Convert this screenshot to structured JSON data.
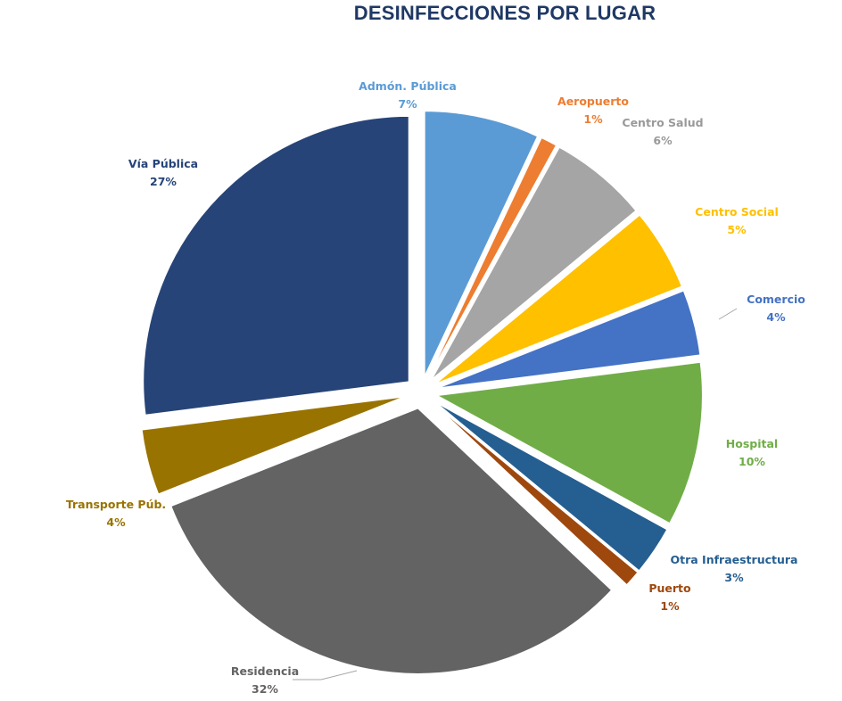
{
  "chart_data": {
    "type": "pie",
    "title": "DESINFECCIONES POR LUGAR",
    "exploded": true,
    "legend": "none",
    "slices": [
      {
        "name": "Admón. Pública",
        "percent_label": "7%",
        "value": 7,
        "color": "#5b9bd5"
      },
      {
        "name": "Aeropuerto",
        "percent_label": "1%",
        "value": 1,
        "color": "#ed7d31"
      },
      {
        "name": "Centro Salud",
        "percent_label": "6%",
        "value": 6,
        "color": "#a5a5a5"
      },
      {
        "name": "Centro Social",
        "percent_label": "5%",
        "value": 5,
        "color": "#ffc000"
      },
      {
        "name": "Comercio",
        "percent_label": "4%",
        "value": 4,
        "color": "#4472c4"
      },
      {
        "name": "Hospital",
        "percent_label": "10%",
        "value": 10,
        "color": "#70ad47"
      },
      {
        "name": "Otra Infraestructura",
        "percent_label": "3%",
        "value": 3,
        "color": "#255e91"
      },
      {
        "name": "Puerto",
        "percent_label": "1%",
        "value": 1,
        "color": "#9e480e"
      },
      {
        "name": "Residencia",
        "percent_label": "32%",
        "value": 32,
        "color": "#636363"
      },
      {
        "name": "Transporte Púb.",
        "percent_label": "4%",
        "value": 4,
        "color": "#997300"
      },
      {
        "name": "Vía Pública",
        "percent_label": "27%",
        "value": 27,
        "color": "#264478"
      }
    ]
  }
}
